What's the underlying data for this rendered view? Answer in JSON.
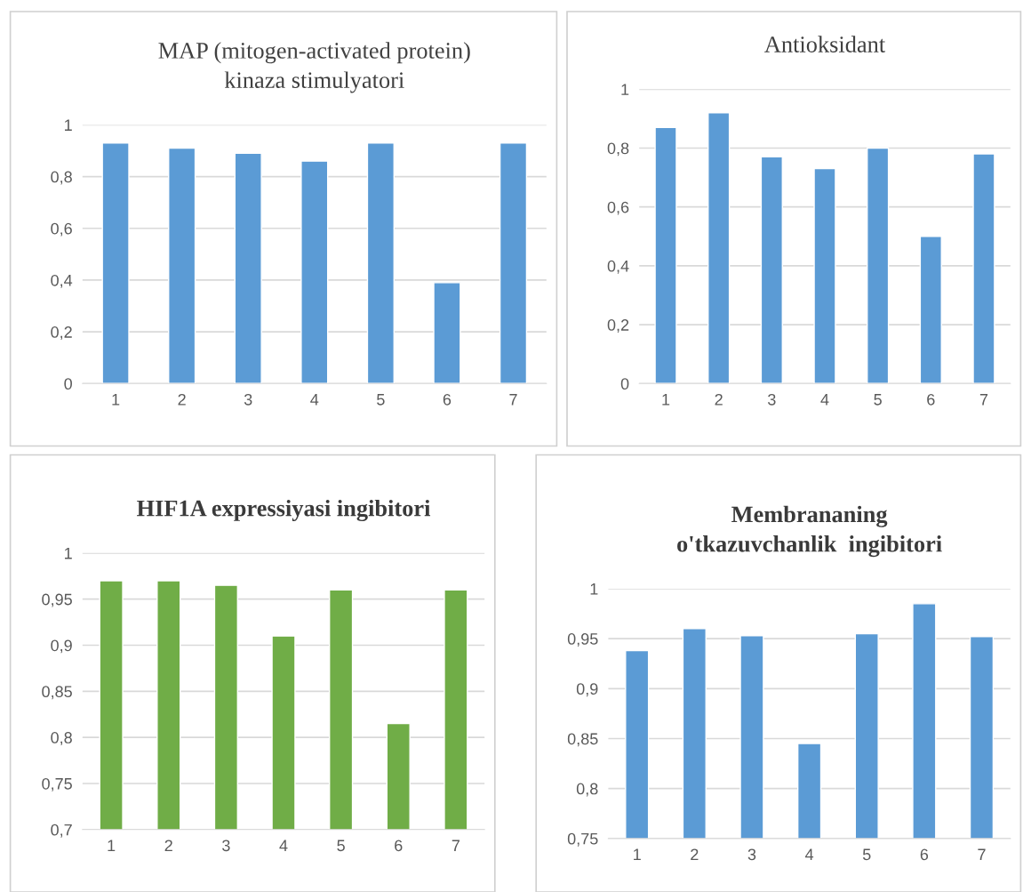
{
  "chart_data": [
    {
      "type": "bar",
      "title": "MAP (mitogen-activated protein)\nkinaza stimulyatori",
      "categories": [
        "1",
        "2",
        "3",
        "4",
        "5",
        "6",
        "7"
      ],
      "values": [
        0.93,
        0.91,
        0.89,
        0.86,
        0.93,
        0.39,
        0.93
      ],
      "color": "#5b9bd5",
      "ylim": [
        0,
        1
      ],
      "yticks": [
        {
          "value": 0,
          "label": "0"
        },
        {
          "value": 0.2,
          "label": "0,2"
        },
        {
          "value": 0.4,
          "label": "0,4"
        },
        {
          "value": 0.6,
          "label": "0,6"
        },
        {
          "value": 0.8,
          "label": "0,8"
        },
        {
          "value": 1,
          "label": "1"
        }
      ],
      "grid": "y"
    },
    {
      "type": "bar",
      "title": "Antioksidant",
      "categories": [
        "1",
        "2",
        "3",
        "4",
        "5",
        "6",
        "7"
      ],
      "values": [
        0.87,
        0.92,
        0.77,
        0.73,
        0.8,
        0.5,
        0.78
      ],
      "color": "#5b9bd5",
      "ylim": [
        0,
        1
      ],
      "yticks": [
        {
          "value": 0,
          "label": "0"
        },
        {
          "value": 0.2,
          "label": "0,2"
        },
        {
          "value": 0.4,
          "label": "0,4"
        },
        {
          "value": 0.6,
          "label": "0,6"
        },
        {
          "value": 0.8,
          "label": "0,8"
        },
        {
          "value": 1,
          "label": "1"
        }
      ],
      "grid": "y"
    },
    {
      "type": "bar",
      "title": "HIF1A expressiyasi ingibitori",
      "categories": [
        "1",
        "2",
        "3",
        "4",
        "5",
        "6",
        "7"
      ],
      "values": [
        0.97,
        0.97,
        0.965,
        0.91,
        0.96,
        0.815,
        0.96
      ],
      "color": "#70ad47",
      "ylim": [
        0.7,
        1
      ],
      "yticks": [
        {
          "value": 0.7,
          "label": "0,7"
        },
        {
          "value": 0.75,
          "label": "0,75"
        },
        {
          "value": 0.8,
          "label": "0,8"
        },
        {
          "value": 0.85,
          "label": "0,85"
        },
        {
          "value": 0.9,
          "label": "0,9"
        },
        {
          "value": 0.95,
          "label": "0,95"
        },
        {
          "value": 1,
          "label": "1"
        }
      ],
      "grid": "y"
    },
    {
      "type": "bar",
      "title": "Membrananing\no'tkazuvchanlik  ingibitori",
      "categories": [
        "1",
        "2",
        "3",
        "4",
        "5",
        "6",
        "7"
      ],
      "values": [
        0.938,
        0.96,
        0.953,
        0.845,
        0.955,
        0.985,
        0.952
      ],
      "color": "#5b9bd5",
      "ylim": [
        0.75,
        1
      ],
      "yticks": [
        {
          "value": 0.75,
          "label": "0,75"
        },
        {
          "value": 0.8,
          "label": "0,8"
        },
        {
          "value": 0.85,
          "label": "0,85"
        },
        {
          "value": 0.9,
          "label": "0,9"
        },
        {
          "value": 0.95,
          "label": "0,95"
        },
        {
          "value": 1,
          "label": "1"
        }
      ],
      "grid": "y"
    }
  ]
}
